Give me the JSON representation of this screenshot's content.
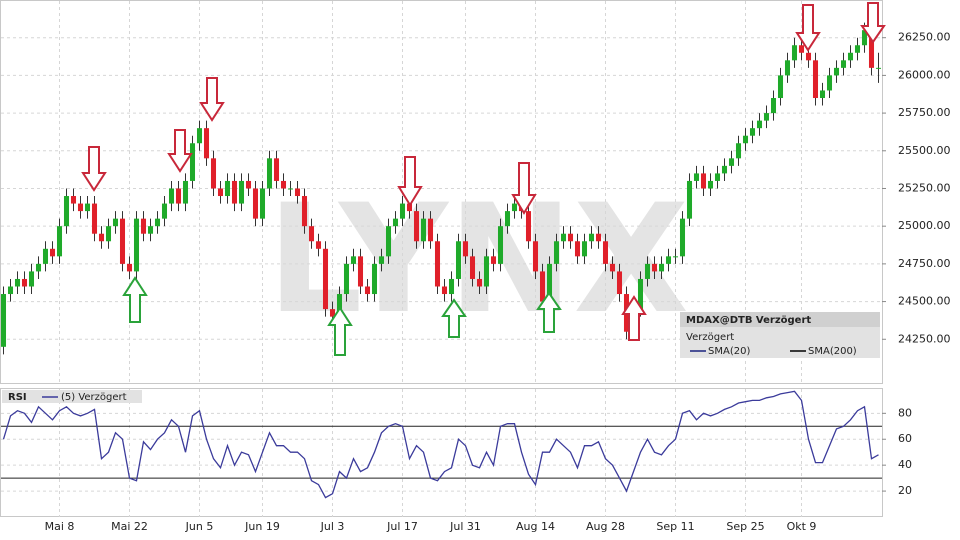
{
  "chart_data": [
    {
      "type": "candlestick",
      "watermark": "LYNX",
      "categories": [
        null,
        null,
        null,
        null,
        null,
        null,
        null,
        null,
        "Mai 8",
        null,
        null,
        null,
        null,
        null,
        null,
        null,
        null,
        null,
        "Mai 22",
        null,
        null,
        null,
        null,
        null,
        null,
        null,
        null,
        null,
        "Jun 5",
        null,
        null,
        null,
        null,
        null,
        null,
        null,
        null,
        "Jun 19",
        null,
        null,
        null,
        null,
        null,
        null,
        null,
        null,
        null,
        "Jul 3",
        null,
        null,
        null,
        null,
        null,
        null,
        null,
        null,
        null,
        "Jul 17",
        null,
        null,
        null,
        null,
        null,
        null,
        null,
        null,
        "Jul 31",
        null,
        null,
        null,
        null,
        null,
        null,
        null,
        null,
        null,
        "Aug 14",
        null,
        null,
        null,
        null,
        null,
        null,
        null,
        null,
        null,
        "Aug 28",
        null,
        null,
        null,
        null,
        null,
        null,
        null,
        null,
        null,
        "Sep 11",
        null,
        null,
        null,
        null,
        null,
        null,
        null,
        null,
        null,
        "Sep 25",
        null,
        null,
        null,
        null,
        null,
        null,
        null,
        "Okt 9",
        null,
        null,
        null,
        null,
        null,
        null,
        null,
        null,
        null,
        null,
        null
      ],
      "open": [
        24200,
        24550,
        24600,
        24650,
        24600,
        24700,
        24750,
        24850,
        24800,
        25000,
        25200,
        25150,
        25100,
        25150,
        24950,
        24900,
        25000,
        25050,
        24750,
        24700,
        25050,
        24950,
        25000,
        25050,
        25150,
        25250,
        25150,
        25300,
        25550,
        25650,
        25450,
        25250,
        25200,
        25300,
        25150,
        25300,
        25250,
        25050,
        25250,
        25450,
        25300,
        25250,
        25250,
        25200,
        25000,
        24900,
        24850,
        24450,
        24400,
        24550,
        24750,
        24800,
        24600,
        24550,
        24750,
        24800,
        25000,
        25050,
        25150,
        25100,
        24900,
        25050,
        24900,
        24600,
        24550,
        24650,
        24900,
        24800,
        24650,
        24600,
        24800,
        24750,
        25000,
        25100,
        25150,
        25100,
        24900,
        24700,
        24500,
        24750,
        24900,
        24950,
        24900,
        24800,
        24900,
        24950,
        24900,
        24750,
        24700,
        24550,
        24300,
        24450,
        24650,
        24750,
        24700,
        24750,
        24800,
        24800,
        25050,
        25300,
        25350,
        25250,
        25300,
        25350,
        25400,
        25450,
        25550,
        25600,
        25650,
        25700,
        25750,
        25850,
        26000,
        26100,
        26200,
        26150,
        26100,
        25850,
        25900,
        26000,
        26050,
        26100,
        26150,
        26200,
        26300,
        26050
      ],
      "high": [
        24600,
        24650,
        24700,
        24700,
        24750,
        24800,
        24900,
        24900,
        25050,
        25250,
        25250,
        25200,
        25200,
        25200,
        25000,
        25050,
        25100,
        25100,
        24800,
        25100,
        25100,
        25050,
        25100,
        25200,
        25300,
        25300,
        25350,
        25600,
        25700,
        25700,
        25500,
        25300,
        25350,
        25350,
        25350,
        25350,
        25300,
        25300,
        25500,
        25500,
        25350,
        25300,
        25300,
        25250,
        25050,
        24950,
        24900,
        24500,
        24600,
        24800,
        24850,
        24850,
        24650,
        24800,
        24850,
        25050,
        25100,
        25200,
        25200,
        25150,
        25100,
        25100,
        24950,
        24650,
        24700,
        24950,
        24950,
        24850,
        24700,
        24850,
        24850,
        25050,
        25150,
        25200,
        25200,
        25150,
        24950,
        24750,
        24800,
        24950,
        25000,
        25000,
        24950,
        24950,
        25000,
        25000,
        24950,
        24800,
        24750,
        24600,
        24500,
        24700,
        24800,
        24800,
        24800,
        24850,
        24850,
        25100,
        25350,
        25400,
        25400,
        25350,
        25400,
        25450,
        25500,
        25600,
        25650,
        25700,
        25750,
        25800,
        25900,
        26050,
        26150,
        26250,
        26250,
        26200,
        26150,
        25950,
        26050,
        26100,
        26150,
        26200,
        26250,
        26350,
        26350,
        26150
      ],
      "low": [
        24150,
        24500,
        24550,
        24550,
        24550,
        24650,
        24700,
        24750,
        24750,
        24950,
        25100,
        25050,
        25050,
        24900,
        24850,
        24850,
        24950,
        24700,
        24650,
        24650,
        24900,
        24900,
        24950,
        25000,
        25100,
        25100,
        25100,
        25250,
        25500,
        25400,
        25200,
        25150,
        25150,
        25100,
        25100,
        25200,
        25000,
        25000,
        25200,
        25250,
        25200,
        25200,
        25150,
        24950,
        24850,
        24800,
        24400,
        24350,
        24350,
        24500,
        24700,
        24550,
        24500,
        24500,
        24700,
        24750,
        24950,
        25000,
        25050,
        24850,
        24850,
        24850,
        24550,
        24500,
        24500,
        24600,
        24750,
        24600,
        24550,
        24550,
        24700,
        24700,
        24950,
        25050,
        25050,
        24850,
        24650,
        24450,
        24450,
        24700,
        24850,
        24850,
        24750,
        24750,
        24850,
        24850,
        24700,
        24650,
        24500,
        24250,
        24250,
        24400,
        24600,
        24650,
        24650,
        24700,
        24750,
        24750,
        25000,
        25250,
        25200,
        25200,
        25250,
        25300,
        25350,
        25400,
        25500,
        25550,
        25600,
        25650,
        25700,
        25800,
        25950,
        26050,
        26100,
        26050,
        25800,
        25800,
        25850,
        25950,
        26000,
        26050,
        26100,
        26150,
        26000,
        25950
      ],
      "close": [
        24550,
        24600,
        24650,
        24600,
        24700,
        24750,
        24850,
        24800,
        25000,
        25200,
        25150,
        25100,
        25150,
        24950,
        24900,
        25000,
        25050,
        24750,
        24700,
        25050,
        24950,
        25000,
        25050,
        25150,
        25250,
        25150,
        25300,
        25550,
        25650,
        25450,
        25250,
        25200,
        25300,
        25150,
        25300,
        25250,
        25050,
        25250,
        25450,
        25300,
        25250,
        25250,
        25200,
        25000,
        24900,
        24850,
        24450,
        24400,
        24550,
        24750,
        24800,
        24600,
        24550,
        24750,
        24800,
        25000,
        25050,
        25150,
        25100,
        24900,
        25050,
        24900,
        24600,
        24550,
        24650,
        24900,
        24800,
        24650,
        24600,
        24800,
        24750,
        25000,
        25100,
        25150,
        25100,
        24900,
        24700,
        24500,
        24750,
        24900,
        24950,
        24900,
        24800,
        24900,
        24950,
        24900,
        24750,
        24700,
        24550,
        24300,
        24450,
        24650,
        24750,
        24700,
        24750,
        24800,
        24800,
        25050,
        25300,
        25350,
        25250,
        25300,
        25350,
        25400,
        25450,
        25550,
        25600,
        25650,
        25700,
        25750,
        25850,
        26000,
        26100,
        26200,
        26150,
        26100,
        25850,
        25900,
        26000,
        26050,
        26100,
        26150,
        26200,
        26300,
        26050,
        26050
      ],
      "up_color": "#1faa2a",
      "down_color": "#e0202a",
      "ylim": [
        23960,
        26500
      ],
      "yticks": [
        {
          "value": 24250,
          "label": "24250.00"
        },
        {
          "value": 24500,
          "label": "24500.00"
        },
        {
          "value": 24750,
          "label": "24750.00"
        },
        {
          "value": 25000,
          "label": "25000.00"
        },
        {
          "value": 25250,
          "label": "25250.00"
        },
        {
          "value": 25500,
          "label": "25500.00"
        },
        {
          "value": 25750,
          "label": "25750.00"
        },
        {
          "value": 26000,
          "label": "26000.00"
        },
        {
          "value": 26250,
          "label": "26250.00"
        }
      ],
      "grid": true,
      "legend": {
        "title": "MDAX@DTB Verzögert",
        "subtitle": "Verzögert",
        "items": [
          {
            "name": "SMA(20)",
            "color": "#1a237e"
          },
          {
            "name": "SMA(200)",
            "color": "#000000"
          }
        ]
      }
    },
    {
      "type": "line",
      "title": "RSI",
      "series": [
        {
          "name": "(5) Verzögert",
          "color": "#3b3b9b",
          "values": [
            60,
            78,
            82,
            80,
            73,
            85,
            80,
            75,
            82,
            85,
            80,
            78,
            80,
            83,
            45,
            50,
            65,
            60,
            30,
            28,
            58,
            52,
            60,
            65,
            75,
            70,
            50,
            78,
            82,
            60,
            45,
            38,
            55,
            40,
            50,
            48,
            35,
            50,
            65,
            55,
            55,
            50,
            50,
            45,
            28,
            25,
            15,
            18,
            35,
            30,
            45,
            35,
            38,
            50,
            65,
            70,
            72,
            70,
            45,
            55,
            50,
            30,
            28,
            35,
            38,
            60,
            55,
            40,
            38,
            50,
            40,
            70,
            72,
            72,
            50,
            33,
            25,
            50,
            50,
            60,
            55,
            50,
            38,
            55,
            55,
            58,
            45,
            40,
            30,
            20,
            35,
            50,
            60,
            50,
            48,
            55,
            60,
            80,
            82,
            75,
            80,
            78,
            80,
            83,
            85,
            88,
            89,
            90,
            90,
            92,
            93,
            95,
            96,
            97,
            90,
            60,
            42,
            42,
            55,
            68,
            70,
            75,
            82,
            85,
            45,
            48
          ]
        }
      ],
      "ylim": [
        0,
        98
      ],
      "yticks": [
        20,
        40,
        60,
        80
      ],
      "reference_lines": [
        70,
        30
      ]
    }
  ]
}
